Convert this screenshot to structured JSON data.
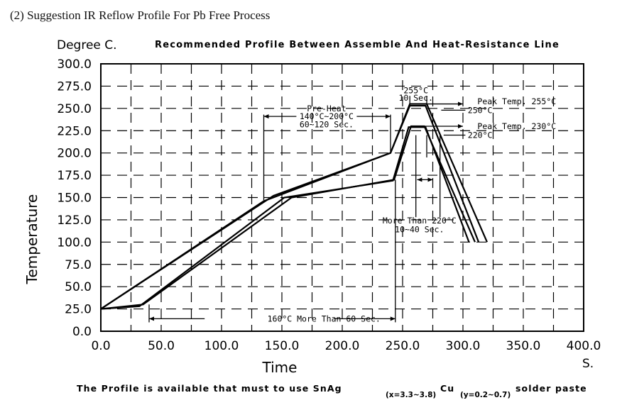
{
  "heading": "(2) Suggestion IR Reflow Profile For Pb Free Process",
  "chart_data": {
    "type": "line",
    "title": "Recommended Profile Between Assemble And Heat-Resistance Line",
    "ylabel_top": "Degree C.",
    "ylabel": "Temperature",
    "xlabel": "Time",
    "xunit": "S.",
    "xlim": [
      0,
      400
    ],
    "ylim": [
      0,
      300
    ],
    "x_ticks": [
      0,
      50,
      100,
      150,
      200,
      250,
      300,
      350,
      400
    ],
    "x_tick_labels": [
      "0.0",
      "50.0",
      "100.0",
      "150.0",
      "200.0",
      "250.0",
      "300.0",
      "350.0",
      "400.0"
    ],
    "y_ticks": [
      0,
      25,
      50,
      75,
      100,
      125,
      150,
      175,
      200,
      225,
      250,
      275,
      300
    ],
    "y_tick_labels": [
      "0.0",
      "25.0",
      "50.0",
      "75.0",
      "100.0",
      "125.0",
      "150.0",
      "175.0",
      "200.0",
      "225.0",
      "250.0",
      "275.0",
      "300.0"
    ],
    "grid": true,
    "series": [
      {
        "x": [
          0,
          135,
          240,
          256,
          270,
          320
        ],
        "y": [
          25,
          146,
          200,
          255,
          255,
          100
        ]
      },
      {
        "x": [
          0,
          143,
          240,
          256,
          269,
          313
        ],
        "y": [
          25,
          152,
          200,
          253,
          253,
          100
        ]
      },
      {
        "x": [
          0,
          35,
          158,
          243,
          257,
          268,
          310
        ],
        "y": [
          25,
          30,
          150,
          170,
          230,
          230,
          100
        ]
      },
      {
        "x": [
          0,
          32,
          152,
          242,
          255,
          269,
          305
        ],
        "y": [
          25,
          28,
          150,
          169,
          229,
          229,
          100
        ]
      }
    ],
    "annotations": [
      {
        "id": "peak-255",
        "text": "255°C",
        "x": 261,
        "y": 270
      },
      {
        "id": "peak-10sec",
        "text": "10 Sec.",
        "x": 261,
        "y": 262
      },
      {
        "id": "preheat-1",
        "text": "Pre-Heat",
        "x": 187,
        "y": 250
      },
      {
        "id": "preheat-2",
        "text": "140°C~200°C",
        "x": 187,
        "y": 241
      },
      {
        "id": "preheat-3",
        "text": "60~120 Sec.",
        "x": 187,
        "y": 232
      },
      {
        "id": "peaktemp-255",
        "text": "Peak Temp. 255°C",
        "x": 312,
        "y": 258
      },
      {
        "id": "line-250",
        "text": "250°C",
        "x": 304,
        "y": 248
      },
      {
        "id": "peaktemp-230",
        "text": "Peak Temp. 230°C",
        "x": 312,
        "y": 230
      },
      {
        "id": "line-220",
        "text": "220°C",
        "x": 304,
        "y": 220
      },
      {
        "id": "morethan-1",
        "text": "More Than 220°C",
        "x": 264,
        "y": 124
      },
      {
        "id": "morethan-2",
        "text": "10~40 Sec.",
        "x": 264,
        "y": 114
      },
      {
        "id": "sixty-sec",
        "text": "160°C More Than 60 Sec.",
        "x": 138,
        "y": 14
      }
    ]
  },
  "footer": {
    "prefix": "The Profile is available that must to use SnAg",
    "sub1": "(x=3.3~3.8)",
    "mid": "Cu",
    "sub2": "(y=0.2~0.7)",
    "suffix": "solder paste"
  }
}
